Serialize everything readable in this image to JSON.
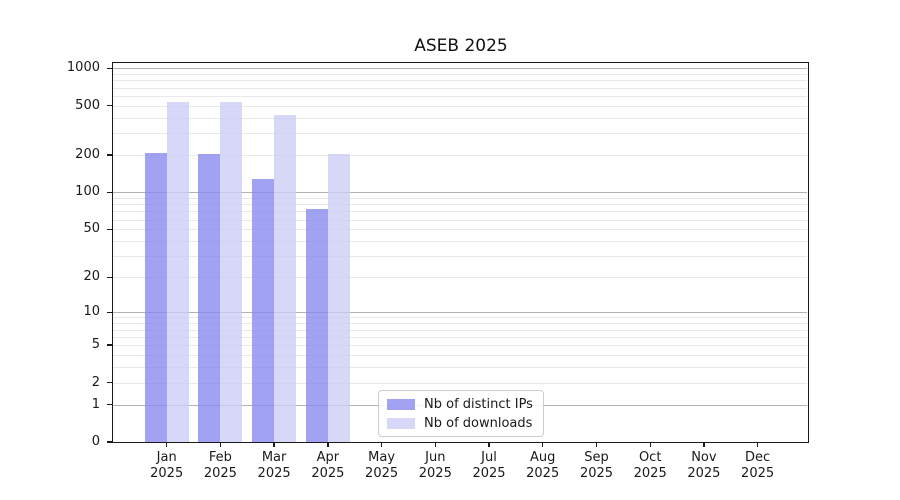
{
  "chart_data": {
    "type": "bar",
    "title": "ASEB 2025",
    "categories": [
      "Jan",
      "Feb",
      "Mar",
      "Apr",
      "May",
      "Jun",
      "Jul",
      "Aug",
      "Sep",
      "Oct",
      "Nov",
      "Dec"
    ],
    "category_year": "2025",
    "series": [
      {
        "name": "Nb of distinct IPs",
        "color": "#8888ee",
        "alpha": 0.78,
        "values": [
          209,
          205,
          128,
          73,
          0,
          0,
          0,
          0,
          0,
          0,
          0,
          0
        ]
      },
      {
        "name": "Nb of downloads",
        "color": "#ccccf6",
        "alpha": 0.78,
        "values": [
          537,
          537,
          417,
          206,
          0,
          0,
          0,
          0,
          0,
          0,
          0,
          0
        ]
      }
    ],
    "xlabel": "",
    "ylabel": "",
    "yscale": "mirror-log (position proportional to log10(value+1))",
    "ytick_values": [
      0,
      1,
      2,
      5,
      10,
      20,
      50,
      100,
      200,
      500,
      1000
    ],
    "ytick_labels": [
      "0",
      "1",
      "2",
      "5",
      "10",
      "20",
      "50",
      "100",
      "200",
      "500",
      "1000"
    ],
    "ylim": [
      0,
      1120
    ],
    "grid": "horizontal, major lines at powers of 10, minor lines at 2-9 per decade",
    "legend_position": "inside bottom-center",
    "colors": {
      "major_grid": "#b3b3b3",
      "minor_grid": "#e9e9e9",
      "axis": "#1a1a1a",
      "text": "#1a1a1a",
      "background": "#ffffff"
    }
  }
}
